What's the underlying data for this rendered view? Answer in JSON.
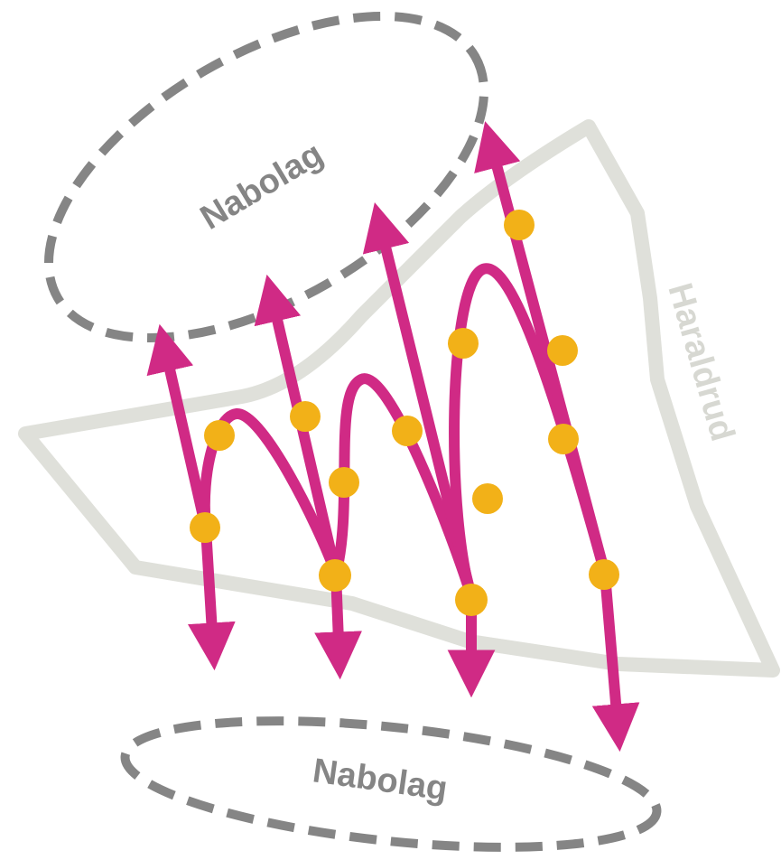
{
  "labels": {
    "neighborhood_top": "Nabolag",
    "neighborhood_bottom": "Nabolag",
    "area_name": "Haraldrud"
  },
  "colors": {
    "route": "#d02a85",
    "stop": "#f2b118",
    "area_outline": "#dfe0da",
    "area_label": "#d7d8d2",
    "neighborhood_outline": "#858585",
    "neighborhood_label": "#858585",
    "background": "#ffffff"
  }
}
